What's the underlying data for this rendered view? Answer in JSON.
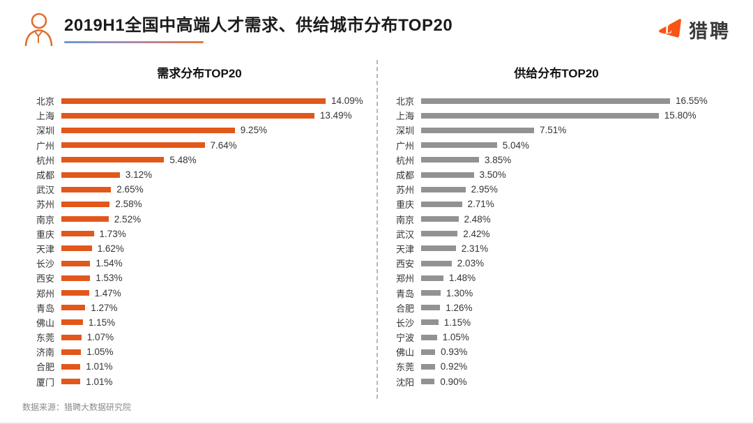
{
  "header": {
    "title": "2019H1全国中高端人才需求、供给城市分布TOP20",
    "logo_text": "猎聘"
  },
  "footer": {
    "source": "数据来源：猎聘大数据研究院"
  },
  "colors": {
    "demand_bar": "#e2571a",
    "supply_bar": "#929292",
    "logo_orange": "#f95412",
    "underline_gradient_start": "#6a9ad4",
    "underline_gradient_end": "#e8763a"
  },
  "chart_data": [
    {
      "type": "bar",
      "orientation": "horizontal",
      "title": "需求分布TOP20",
      "unit": "%",
      "bar_color": "#e2571a",
      "xlim": [
        0,
        14.09
      ],
      "value_labels_shown": true,
      "grid": false,
      "categories": [
        "北京",
        "上海",
        "深圳",
        "广州",
        "杭州",
        "成都",
        "武汉",
        "苏州",
        "南京",
        "重庆",
        "天津",
        "长沙",
        "西安",
        "郑州",
        "青岛",
        "佛山",
        "东莞",
        "济南",
        "合肥",
        "厦门"
      ],
      "values": [
        14.09,
        13.49,
        9.25,
        7.64,
        5.48,
        3.12,
        2.65,
        2.58,
        2.52,
        1.73,
        1.62,
        1.54,
        1.53,
        1.47,
        1.27,
        1.15,
        1.07,
        1.05,
        1.01,
        1.01
      ]
    },
    {
      "type": "bar",
      "orientation": "horizontal",
      "title": "供给分布TOP20",
      "unit": "%",
      "bar_color": "#929292",
      "xlim": [
        0,
        16.55
      ],
      "value_labels_shown": true,
      "grid": false,
      "categories": [
        "北京",
        "上海",
        "深圳",
        "广州",
        "杭州",
        "成都",
        "苏州",
        "重庆",
        "南京",
        "武汉",
        "天津",
        "西安",
        "郑州",
        "青岛",
        "合肥",
        "长沙",
        "宁波",
        "佛山",
        "东莞",
        "沈阳"
      ],
      "values": [
        16.55,
        15.8,
        7.51,
        5.04,
        3.85,
        3.5,
        2.95,
        2.71,
        2.48,
        2.42,
        2.31,
        2.03,
        1.48,
        1.3,
        1.26,
        1.15,
        1.05,
        0.93,
        0.92,
        0.9
      ]
    }
  ]
}
